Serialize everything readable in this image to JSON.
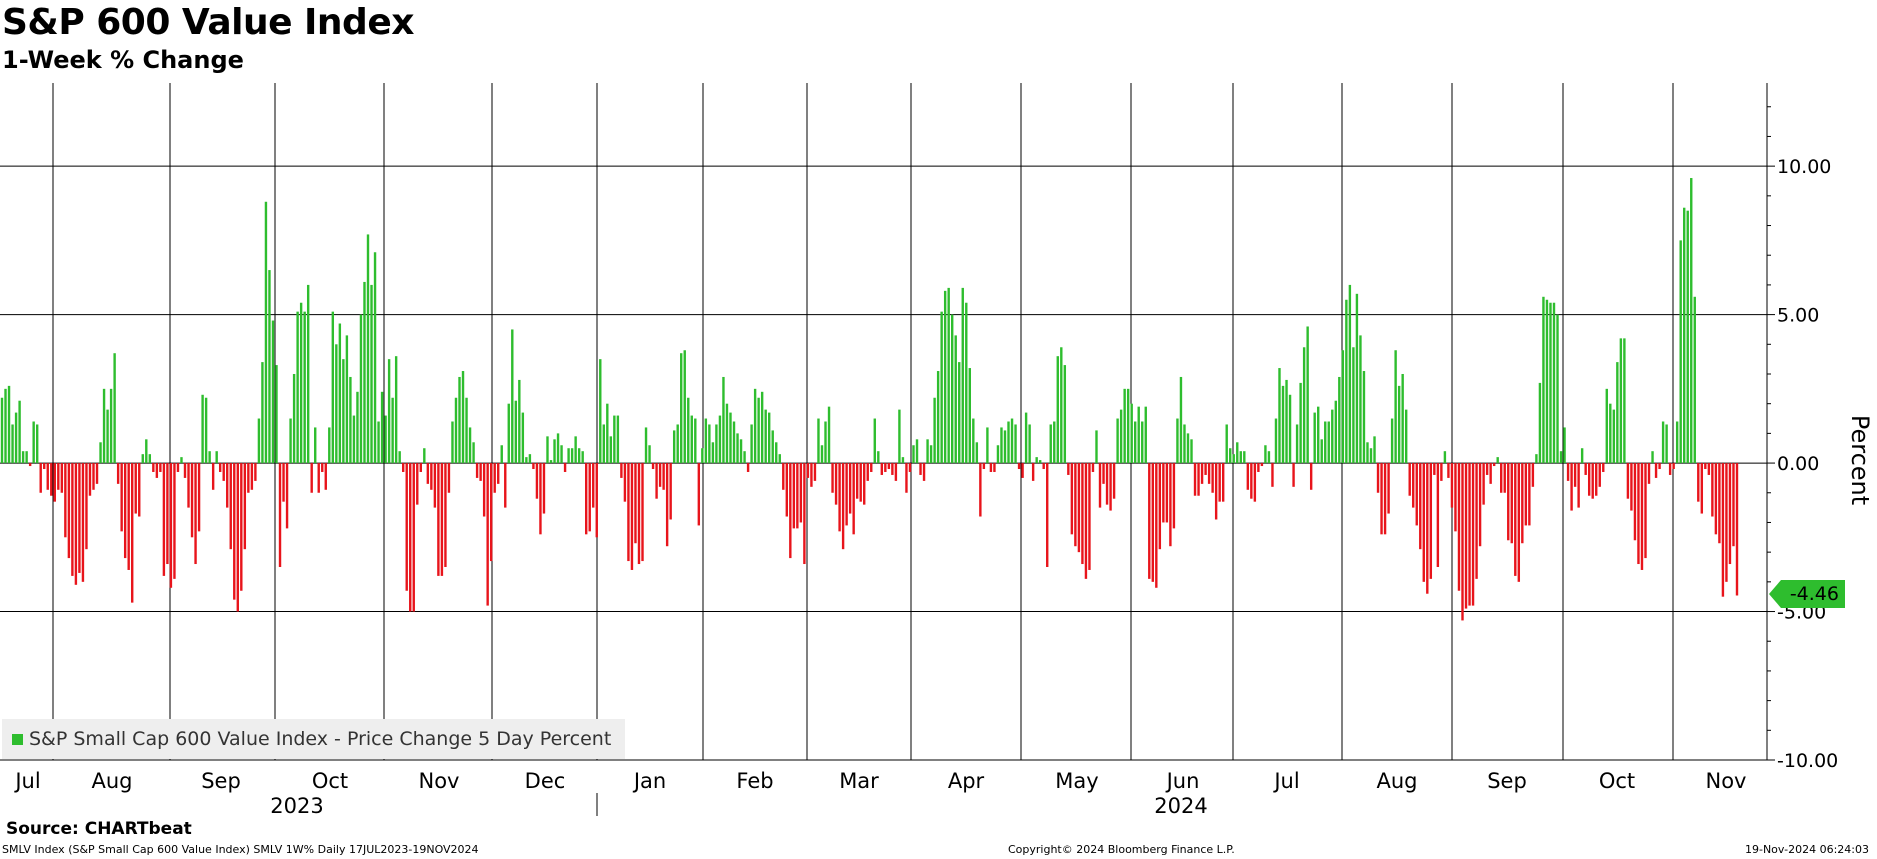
{
  "title": "S&P 600 Value Index",
  "subtitle": "1-Week % Change",
  "source": "Source: CHARTbeat",
  "footer": {
    "left": "SMLV Index (S&P Small Cap 600 Value Index) SMLV 1W% Daily 17JUL2023-19NOV2024",
    "center": "Copyright© 2024 Bloomberg Finance L.P.",
    "right": "19-Nov-2024 06:24:03"
  },
  "last_value_label": "-4.46",
  "colors": {
    "positive": "#2ebd2e",
    "negative": "#e8141b",
    "badge": "#2ebd2e"
  },
  "chart_data": {
    "type": "bar",
    "title": "S&P 600 Value Index",
    "subtitle": "1-Week % Change",
    "ylabel": "Percent",
    "ylim": [
      -10.0,
      12.8
    ],
    "yticks": [
      10,
      5,
      0,
      -5,
      -10
    ],
    "ytick_labels": [
      "10.00",
      "5.00",
      "0.00",
      "-5.00",
      "-10.00"
    ],
    "axis_position": "right",
    "grid": true,
    "legend": {
      "label": "S&P Small Cap 600 Value Index - Price Change 5 Day Percent",
      "placement": "bottom-left"
    },
    "x_range": [
      "2023-07-17",
      "2024-11-19"
    ],
    "month_labels": [
      "Jul",
      "Aug",
      "Sep",
      "Oct",
      "Nov",
      "Dec",
      "Jan",
      "Feb",
      "Mar",
      "Apr",
      "May",
      "Jun",
      "Jul",
      "Aug",
      "Sep",
      "Oct",
      "Nov"
    ],
    "year_labels": [
      "2023",
      "2024"
    ],
    "series": [
      {
        "name": "S&P Small Cap 600 Value Index - Price Change 5 Day Percent",
        "values": [
          2.2,
          2.5,
          2.6,
          1.3,
          1.7,
          2.1,
          0.4,
          0.4,
          -0.1,
          1.4,
          1.3,
          -1.0,
          -0.2,
          -0.9,
          -1.1,
          -1.3,
          -0.9,
          -1.0,
          -2.5,
          -3.2,
          -3.8,
          -4.1,
          -3.7,
          -4.0,
          -2.9,
          -1.1,
          -0.9,
          -0.7,
          0.7,
          2.5,
          1.8,
          2.5,
          3.7,
          -0.7,
          -2.3,
          -3.2,
          -3.6,
          -4.7,
          -1.7,
          -1.8,
          0.3,
          0.8,
          0.3,
          -0.3,
          -0.5,
          -0.3,
          -3.8,
          -3.4,
          -4.2,
          -3.9,
          -0.3,
          0.2,
          -0.5,
          -1.5,
          -2.5,
          -3.4,
          -2.3,
          2.3,
          2.2,
          0.4,
          -0.9,
          0.4,
          -0.3,
          -0.6,
          -1.5,
          -2.9,
          -4.6,
          -5.0,
          -4.3,
          -2.9,
          -1.0,
          -0.9,
          -0.6,
          1.5,
          3.4,
          8.8,
          6.5,
          4.8,
          3.3,
          -3.5,
          -1.3,
          -2.2,
          1.5,
          3.0,
          5.1,
          5.4,
          5.1,
          6.0,
          -1.0,
          1.2,
          -1.0,
          -0.3,
          -0.9,
          1.2,
          5.1,
          4.0,
          4.7,
          3.5,
          4.3,
          2.9,
          1.6,
          2.4,
          5.0,
          6.1,
          7.7,
          6.0,
          7.1,
          1.4,
          2.4,
          1.6,
          3.5,
          2.2,
          3.6,
          0.4,
          -0.3,
          -4.3,
          -5.0,
          -5.0,
          -1.4,
          -0.3,
          0.5,
          -0.7,
          -0.9,
          -1.5,
          -3.8,
          -3.8,
          -3.5,
          -1.0,
          1.4,
          2.2,
          2.9,
          3.1,
          2.2,
          1.2,
          0.7,
          -0.5,
          -0.6,
          -1.8,
          -4.8,
          -3.3,
          -1.0,
          -0.7,
          0.6,
          -1.5,
          2.0,
          4.5,
          2.1,
          2.8,
          1.7,
          0.2,
          0.3,
          -0.2,
          -1.2,
          -2.4,
          -1.7,
          0.9,
          0.1,
          0.8,
          1.0,
          0.6,
          -0.3,
          0.5,
          0.5,
          0.9,
          0.5,
          0.4,
          -2.4,
          -2.3,
          -1.5,
          -2.5,
          3.5,
          1.3,
          2.0,
          0.9,
          1.6,
          1.6,
          -0.5,
          -1.3,
          -3.3,
          -3.6,
          -2.7,
          -3.4,
          -3.3,
          1.2,
          0.6,
          -0.2,
          -1.2,
          -0.8,
          -0.9,
          -2.8,
          -1.9,
          1.1,
          1.3,
          3.7,
          3.8,
          2.2,
          1.6,
          1.5,
          -2.1,
          0.5,
          1.5,
          1.3,
          0.7,
          1.3,
          1.6,
          2.9,
          2.0,
          1.7,
          1.4,
          1.0,
          0.8,
          0.4,
          -0.3,
          1.3,
          2.5,
          2.2,
          2.4,
          1.8,
          1.7,
          1.1,
          0.7,
          0.3,
          -0.9,
          -1.8,
          -3.2,
          -2.2,
          -2.2,
          -2.0,
          -3.4,
          -0.5,
          -0.8,
          -0.6,
          1.5,
          0.6,
          1.4,
          1.9,
          -1.0,
          -1.4,
          -2.3,
          -2.9,
          -2.1,
          -1.7,
          -2.4,
          -1.2,
          -1.3,
          -1.4,
          -0.6,
          -0.3,
          1.5,
          0.4,
          -0.4,
          -0.3,
          -0.2,
          -0.4,
          -0.6,
          1.8,
          0.2,
          -1.0,
          -0.3,
          0.6,
          0.8,
          -0.4,
          -0.6,
          0.8,
          0.6,
          2.2,
          3.1,
          5.1,
          5.8,
          5.9,
          5.0,
          4.3,
          3.4,
          5.9,
          5.4,
          3.2,
          1.5,
          0.7,
          -1.8,
          -0.2,
          1.2,
          -0.3,
          -0.3,
          0.6,
          1.2,
          1.1,
          1.4,
          1.5,
          1.3,
          -0.2,
          -0.5,
          1.7,
          1.3,
          -0.6,
          0.2,
          0.1,
          -0.2,
          -3.5,
          1.3,
          1.4,
          3.6,
          3.9,
          3.3,
          -0.4,
          -2.4,
          -2.8,
          -3.0,
          -3.4,
          -3.9,
          -3.6,
          -0.3,
          1.1,
          -1.5,
          -0.7,
          -1.4,
          -1.6,
          -1.2,
          1.5,
          1.8,
          2.5,
          2.5,
          2.0,
          1.4,
          1.9,
          1.4,
          1.9,
          -3.9,
          -4.0,
          -4.2,
          -2.9,
          -2.0,
          -2.0,
          -2.8,
          -2.2,
          1.5,
          2.9,
          1.3,
          1.0,
          0.8,
          -1.1,
          -1.1,
          -0.7,
          -0.4,
          -0.7,
          -1.0,
          -1.9,
          -1.3,
          -1.3,
          1.3,
          0.5,
          0.3,
          0.7,
          0.4,
          0.4,
          -0.9,
          -1.2,
          -1.3,
          -0.3,
          -0.1,
          0.6,
          0.4,
          -0.8,
          1.5,
          3.2,
          2.6,
          2.8,
          2.3,
          -0.8,
          1.3,
          2.7,
          3.9,
          4.6,
          -0.9,
          1.7,
          1.9,
          0.8,
          1.4,
          1.4,
          1.8,
          2.1,
          2.9,
          3.8,
          5.5,
          6.0,
          3.9,
          5.7,
          4.3,
          3.1,
          0.7,
          0.5,
          0.9,
          -1.0,
          -2.4,
          -2.4,
          -1.7,
          1.5,
          3.8,
          2.6,
          3.0,
          1.8,
          -1.1,
          -1.5,
          -2.1,
          -2.9,
          -4.0,
          -4.4,
          -3.9,
          -0.4,
          -3.5,
          -0.6,
          0.4,
          -0.5,
          -1.5,
          -2.3,
          -4.3,
          -5.3,
          -4.9,
          -4.8,
          -4.8,
          -3.9,
          -2.8,
          -1.4,
          -0.4,
          -0.7,
          -0.1,
          0.2,
          -1.0,
          -1.0,
          -2.6,
          -2.7,
          -3.8,
          -4.0,
          -2.7,
          -2.1,
          -2.1,
          -0.8,
          0.3,
          2.7,
          5.6,
          5.5,
          5.4,
          5.4,
          5.0,
          0.4,
          1.2,
          -0.6,
          -1.6,
          -0.8,
          -1.5,
          0.5,
          -0.4,
          -1.1,
          -1.2,
          -1.1,
          -0.8,
          -0.3,
          2.5,
          2.0,
          1.8,
          3.4,
          4.2,
          4.2,
          -1.2,
          -1.6,
          -2.6,
          -3.4,
          -3.6,
          -3.2,
          -0.7,
          0.4,
          -0.5,
          -0.2,
          1.4,
          1.3,
          -0.4,
          -0.2,
          1.4,
          7.5,
          8.6,
          8.5,
          9.6,
          5.6,
          -1.3,
          -1.7,
          -0.2,
          -0.4,
          -1.8,
          -2.4,
          -2.7,
          -4.5,
          -4.0,
          -3.4,
          -2.8,
          -4.46
        ]
      }
    ]
  }
}
